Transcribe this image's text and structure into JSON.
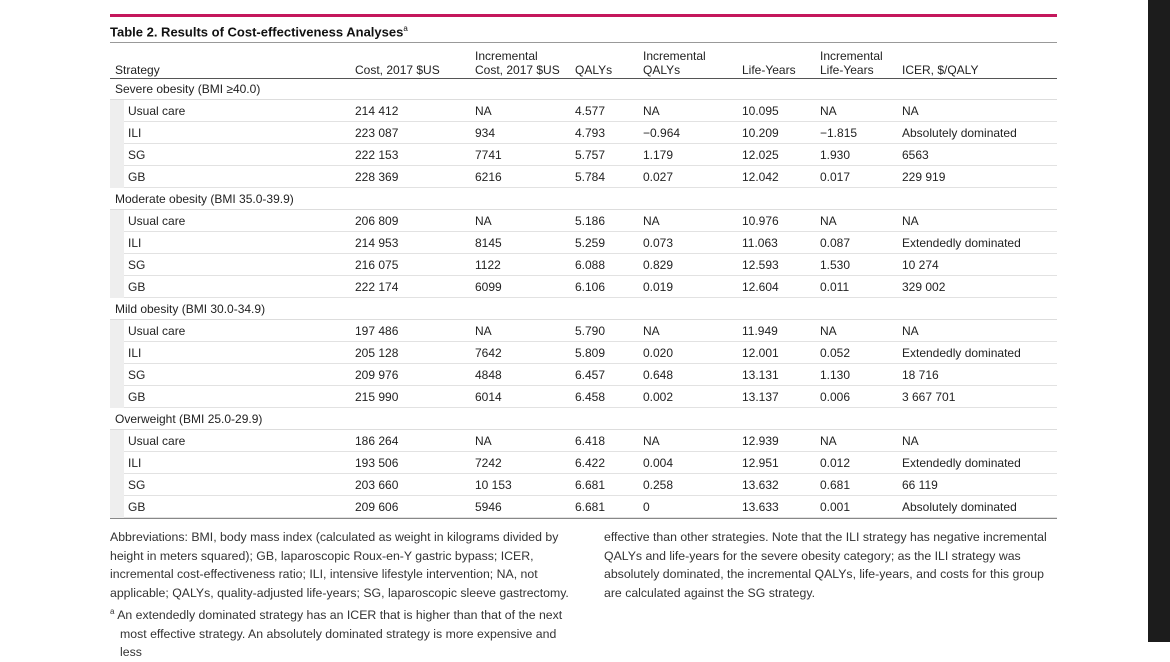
{
  "header": {
    "title": "Table 2. Results of Cost-effectiveness Analyses",
    "title_note": "a"
  },
  "table": {
    "columns": [
      "Strategy",
      "Cost, 2017 $US",
      "Incremental\nCost, 2017 $US",
      "QALYs",
      "Incremental\nQALYs",
      "Life-Years",
      "Incremental\nLife-Years",
      "ICER, $/QALY"
    ],
    "groups": [
      {
        "label": "Severe obesity (BMI ≥40.0)",
        "rows": [
          [
            "Usual care",
            "214 412",
            "NA",
            "4.577",
            "NA",
            "10.095",
            "NA",
            "NA"
          ],
          [
            "ILI",
            "223 087",
            "934",
            "4.793",
            "−0.964",
            "10.209",
            "−1.815",
            "Absolutely dominated"
          ],
          [
            "SG",
            "222 153",
            "7741",
            "5.757",
            "1.179",
            "12.025",
            "1.930",
            "6563"
          ],
          [
            "GB",
            "228 369",
            "6216",
            "5.784",
            "0.027",
            "12.042",
            "0.017",
            "229 919"
          ]
        ]
      },
      {
        "label": "Moderate obesity (BMI 35.0-39.9)",
        "rows": [
          [
            "Usual care",
            "206 809",
            "NA",
            "5.186",
            "NA",
            "10.976",
            "NA",
            "NA"
          ],
          [
            "ILI",
            "214 953",
            "8145",
            "5.259",
            "0.073",
            "11.063",
            "0.087",
            "Extendedly dominated"
          ],
          [
            "SG",
            "216 075",
            "1122",
            "6.088",
            "0.829",
            "12.593",
            "1.530",
            "10 274"
          ],
          [
            "GB",
            "222 174",
            "6099",
            "6.106",
            "0.019",
            "12.604",
            "0.011",
            "329 002"
          ]
        ]
      },
      {
        "label": "Mild obesity (BMI 30.0-34.9)",
        "rows": [
          [
            "Usual care",
            "197 486",
            "NA",
            "5.790",
            "NA",
            "11.949",
            "NA",
            "NA"
          ],
          [
            "ILI",
            "205 128",
            "7642",
            "5.809",
            "0.020",
            "12.001",
            "0.052",
            "Extendedly dominated"
          ],
          [
            "SG",
            "209 976",
            "4848",
            "6.457",
            "0.648",
            "13.131",
            "1.130",
            "18 716"
          ],
          [
            "GB",
            "215 990",
            "6014",
            "6.458",
            "0.002",
            "13.137",
            "0.006",
            "3 667 701"
          ]
        ]
      },
      {
        "label": "Overweight (BMI 25.0-29.9)",
        "rows": [
          [
            "Usual care",
            "186 264",
            "NA",
            "6.418",
            "NA",
            "12.939",
            "NA",
            "NA"
          ],
          [
            "ILI",
            "193 506",
            "7242",
            "6.422",
            "0.004",
            "12.951",
            "0.012",
            "Extendedly dominated"
          ],
          [
            "SG",
            "203 660",
            "10 153",
            "6.681",
            "0.258",
            "13.632",
            "0.681",
            "66 119"
          ],
          [
            "GB",
            "209 606",
            "5946",
            "6.681",
            "0",
            "13.633",
            "0.001",
            "Absolutely dominated"
          ]
        ]
      }
    ]
  },
  "notes": {
    "abbreviations": "Abbreviations: BMI, body mass index (calculated as weight in kilograms divided by height in meters squared); GB, laparoscopic Roux-en-Y gastric bypass; ICER, incremental cost-effectiveness ratio; ILI, intensive lifestyle intervention; NA, not applicable; QALYs, quality-adjusted life-years; SG, laparoscopic sleeve gastrectomy.",
    "footnote_marker": "a",
    "footnote_part1": "An extendedly dominated strategy has an ICER that is higher than that of the next most effective strategy. An absolutely dominated strategy is more expensive and less",
    "footnote_part2": "effective than other strategies. Note that the ILI strategy has negative incremental QALYs and life-years for the severe obesity category; as the ILI strategy was absolutely dominated, the incremental QALYs, life-years, and costs for this group are calculated against the SG strategy."
  }
}
